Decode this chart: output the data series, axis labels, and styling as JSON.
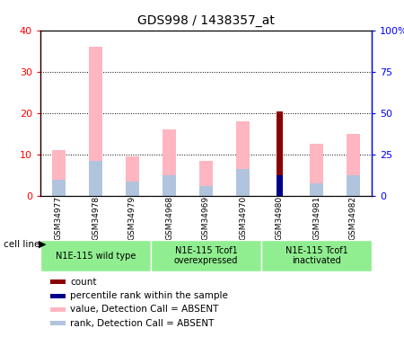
{
  "title": "GDS998 / 1438357_at",
  "samples": [
    "GSM34977",
    "GSM34978",
    "GSM34979",
    "GSM34968",
    "GSM34969",
    "GSM34970",
    "GSM34980",
    "GSM34981",
    "GSM34982"
  ],
  "value_absent": [
    11,
    36,
    9.5,
    16,
    8.5,
    18,
    0,
    12.5,
    15
  ],
  "rank_absent": [
    4,
    8.5,
    3.5,
    5,
    2.5,
    6.5,
    0,
    3,
    5
  ],
  "count": [
    0,
    0,
    0,
    0,
    0,
    0,
    20.5,
    0,
    0
  ],
  "percentile": [
    0,
    0,
    0,
    0,
    0,
    0,
    5,
    0,
    0
  ],
  "ylim_left": [
    0,
    40
  ],
  "ylim_right": [
    0,
    100
  ],
  "yticks_left": [
    0,
    10,
    20,
    30,
    40
  ],
  "yticks_right": [
    0,
    25,
    50,
    75,
    100
  ],
  "ytick_labels_left": [
    "0",
    "10",
    "20",
    "30",
    "40"
  ],
  "ytick_labels_right": [
    "0",
    "25",
    "50",
    "75",
    "100%"
  ],
  "color_value_absent": "#FFB6C1",
  "color_rank_absent": "#B0C4DE",
  "color_count": "#8B0000",
  "color_percentile": "#00008B",
  "cell_line_groups": [
    {
      "label": "N1E-115 wild type",
      "start": 0,
      "end": 3
    },
    {
      "label": "N1E-115 Tcof1\noverexpressed",
      "start": 3,
      "end": 6
    },
    {
      "label": "N1E-115 Tcof1\ninactivated",
      "start": 6,
      "end": 9
    }
  ],
  "legend_items": [
    {
      "color": "#8B0000",
      "label": "count"
    },
    {
      "color": "#00008B",
      "label": "percentile rank within the sample"
    },
    {
      "color": "#FFB6C1",
      "label": "value, Detection Call = ABSENT"
    },
    {
      "color": "#B0C4DE",
      "label": "rank, Detection Call = ABSENT"
    }
  ],
  "bar_width": 0.15,
  "group_bg_color": "#C8C8C8",
  "cell_line_bg_color": "#90EE90",
  "cell_line_label": "cell line",
  "chart_bg": "#FFFFFF"
}
